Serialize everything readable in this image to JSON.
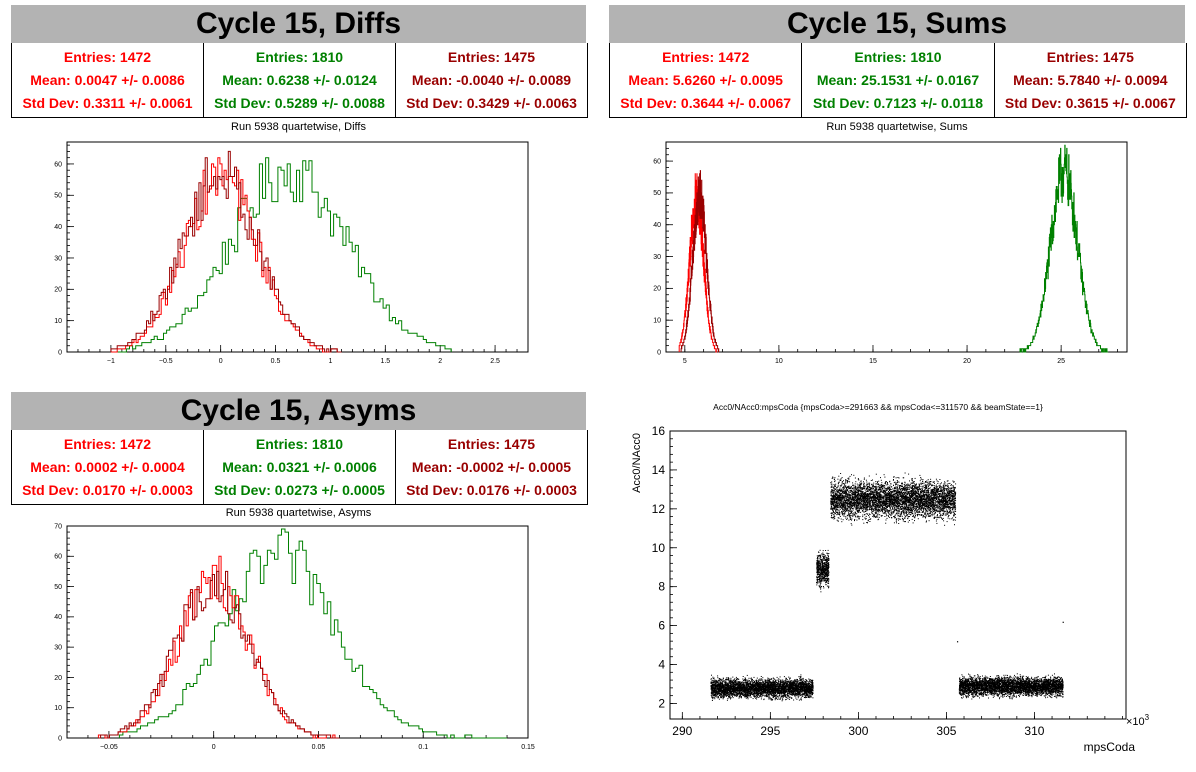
{
  "colors": {
    "red": "#ff0000",
    "green": "#008000",
    "darkred": "#990000",
    "header_bg": "#b3b3b3"
  },
  "panels": [
    {
      "title": "Cycle 15, Diffs",
      "stats": [
        {
          "entries": "Entries: 1472",
          "mean": "Mean: 0.0047 +/- 0.0086",
          "std": "Std Dev: 0.3311 +/- 0.0061",
          "color": "#ff0000"
        },
        {
          "entries": "Entries: 1810",
          "mean": "Mean: 0.6238 +/- 0.0124",
          "std": "Std Dev: 0.5289 +/- 0.0088",
          "color": "#008000"
        },
        {
          "entries": "Entries: 1475",
          "mean": "Mean: -0.0040 +/- 0.0089",
          "std": "Std Dev: 0.3429 +/- 0.0063",
          "color": "#990000"
        }
      ],
      "subtitle": "Run 5938 quartetwise, Diffs"
    },
    {
      "title": "Cycle 15, Sums",
      "stats": [
        {
          "entries": "Entries: 1472",
          "mean": "Mean: 5.6260 +/- 0.0095",
          "std": "Std Dev: 0.3644 +/- 0.0067",
          "color": "#ff0000"
        },
        {
          "entries": "Entries: 1810",
          "mean": "Mean: 25.1531 +/- 0.0167",
          "std": "Std Dev: 0.7123 +/- 0.0118",
          "color": "#008000"
        },
        {
          "entries": "Entries: 1475",
          "mean": "Mean: 5.7840 +/- 0.0094",
          "std": "Std Dev: 0.3615 +/- 0.0067",
          "color": "#990000"
        }
      ],
      "subtitle": "Run 5938 quartetwise, Sums"
    },
    {
      "title": "Cycle 15, Asyms",
      "stats": [
        {
          "entries": "Entries: 1472",
          "mean": "Mean: 0.0002 +/- 0.0004",
          "std": "Std Dev: 0.0170 +/- 0.0003",
          "color": "#ff0000"
        },
        {
          "entries": "Entries: 1810",
          "mean": "Mean: 0.0321 +/- 0.0006",
          "std": "Std Dev: 0.0273 +/- 0.0005",
          "color": "#008000"
        },
        {
          "entries": "Entries: 1475",
          "mean": "Mean: -0.0002 +/- 0.0005",
          "std": "Std Dev: 0.0176 +/- 0.0003",
          "color": "#990000"
        }
      ],
      "subtitle": "Run 5938 quartetwise, Asyms"
    }
  ],
  "chart_data": [
    {
      "type": "line",
      "name": "diffs-histogram",
      "xlim": [
        -1.4,
        2.8
      ],
      "ylim": [
        0,
        67
      ],
      "xticks": [
        -1,
        -0.5,
        0,
        0.5,
        1,
        1.5,
        2,
        2.5
      ],
      "xtick_labels": [
        "−1",
        "−0.5",
        "0",
        "0.5",
        "1",
        "1.5",
        "2",
        "2.5"
      ],
      "yticks": [
        0,
        10,
        20,
        30,
        40,
        50,
        60
      ],
      "series": [
        {
          "color": "#008000",
          "mean": 0.6238,
          "std": 0.5289,
          "peak": 64,
          "range": [
            -1.0,
            2.1
          ]
        },
        {
          "color": "#ff0000",
          "mean": 0.0047,
          "std": 0.3311,
          "peak": 62,
          "range": [
            -1.0,
            1.1
          ]
        },
        {
          "color": "#990000",
          "mean": -0.004,
          "std": 0.3429,
          "peak": 63,
          "range": [
            -1.0,
            1.1
          ]
        }
      ]
    },
    {
      "type": "line",
      "name": "sums-histogram",
      "xlim": [
        4,
        28.5
      ],
      "ylim": [
        0,
        66
      ],
      "xticks": [
        5,
        10,
        15,
        20,
        25
      ],
      "xtick_labels": [
        "5",
        "10",
        "15",
        "20",
        "25"
      ],
      "yticks": [
        0,
        10,
        20,
        30,
        40,
        50,
        60
      ],
      "series": [
        {
          "color": "#008000",
          "mean": 25.1531,
          "std": 0.7123,
          "peak": 63,
          "range": [
            22.8,
            27.5
          ]
        },
        {
          "color": "#ff0000",
          "mean": 5.626,
          "std": 0.3644,
          "peak": 54,
          "range": [
            4.7,
            6.7
          ]
        },
        {
          "color": "#990000",
          "mean": 5.784,
          "std": 0.3615,
          "peak": 55,
          "range": [
            4.8,
            6.8
          ]
        }
      ]
    },
    {
      "type": "line",
      "name": "asyms-histogram",
      "xlim": [
        -0.07,
        0.15
      ],
      "ylim": [
        0,
        70
      ],
      "xticks": [
        -0.05,
        0,
        0.05,
        0.1,
        0.15
      ],
      "xtick_labels": [
        "−0.05",
        "0",
        "0.05",
        "0.1",
        "0.15"
      ],
      "yticks": [
        0,
        10,
        20,
        30,
        40,
        50,
        60,
        70
      ],
      "series": [
        {
          "color": "#008000",
          "mean": 0.0321,
          "std": 0.0273,
          "peak": 66,
          "range": [
            -0.045,
            0.14
          ]
        },
        {
          "color": "#ff0000",
          "mean": 0.0002,
          "std": 0.017,
          "peak": 58,
          "range": [
            -0.055,
            0.06
          ]
        },
        {
          "color": "#990000",
          "mean": -0.0002,
          "std": 0.0176,
          "peak": 57,
          "range": [
            -0.055,
            0.06
          ]
        }
      ]
    },
    {
      "type": "scatter",
      "name": "acc0-vs-mpscoda",
      "title": "Acc0/NAcc0:mpsCoda {mpsCoda>=291663 && mpsCoda<=311570 && beamState==1}",
      "xlabel": "mpsCoda",
      "ylabel": "Acc0/NAcc0",
      "x_multiplier": "×10",
      "x_multiplier_exp": "3",
      "xlim": [
        289.3,
        315.2
      ],
      "ylim": [
        1.2,
        16
      ],
      "xticks": [
        290,
        295,
        300,
        305,
        310
      ],
      "xtick_labels": [
        "290",
        "295",
        "300",
        "305",
        "310"
      ],
      "yticks": [
        2,
        4,
        6,
        8,
        10,
        12,
        14,
        16
      ],
      "ytick_labels": [
        "2",
        "4",
        "6",
        "8",
        "10",
        "12",
        "14",
        "16"
      ],
      "clusters": [
        {
          "x": [
            291.6,
            297.4
          ],
          "y_center": 2.8,
          "y_spread": 0.45,
          "points": 4200
        },
        {
          "x": [
            297.6,
            298.3
          ],
          "y_center": 8.9,
          "y_spread": 0.8,
          "points": 600
        },
        {
          "x": [
            298.4,
            305.5
          ],
          "y_center": 12.5,
          "y_spread": 0.9,
          "points": 5200
        },
        {
          "x": [
            305.7,
            311.6
          ],
          "y_center": 2.9,
          "y_spread": 0.45,
          "points": 4200
        }
      ],
      "outliers": [
        {
          "x": 311.6,
          "y": 6.2
        },
        {
          "x": 305.6,
          "y": 5.2
        }
      ]
    }
  ]
}
